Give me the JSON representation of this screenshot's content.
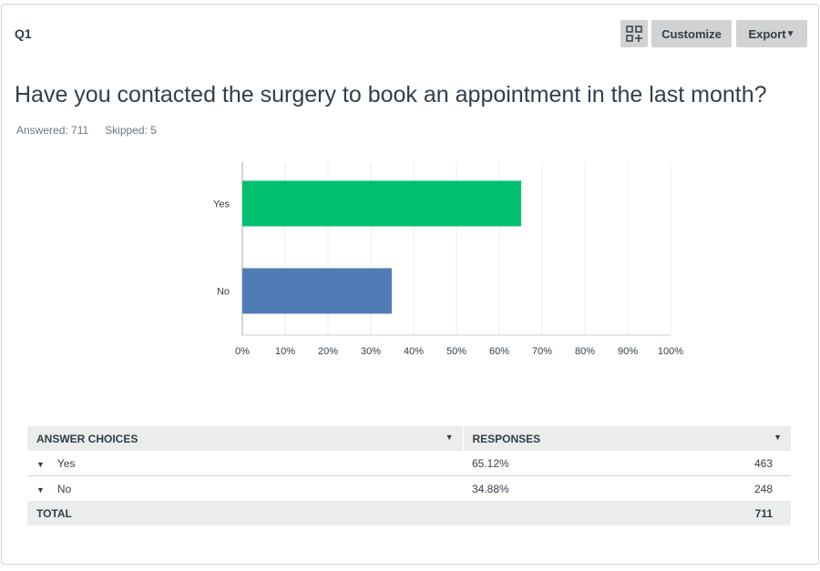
{
  "header": {
    "question_number": "Q1",
    "customize_label": "Customize",
    "export_label": "Export"
  },
  "question": {
    "title": "Have you contacted the surgery to book an appointment in the last month?",
    "answered": "Answered: 711",
    "skipped": "Skipped: 5"
  },
  "chart_data": {
    "type": "bar",
    "orientation": "horizontal",
    "categories": [
      "Yes",
      "No"
    ],
    "values": [
      65.12,
      34.88
    ],
    "colors": [
      "#00bf6f",
      "#507cb6"
    ],
    "xlim": [
      0,
      100
    ],
    "xticks": [
      "0%",
      "10%",
      "20%",
      "30%",
      "40%",
      "50%",
      "60%",
      "70%",
      "80%",
      "90%",
      "100%"
    ],
    "grid": true
  },
  "table": {
    "headers": [
      "ANSWER CHOICES",
      "RESPONSES"
    ],
    "rows": [
      {
        "choice": "Yes",
        "percent": "65.12%",
        "count": "463"
      },
      {
        "choice": "No",
        "percent": "34.88%",
        "count": "248"
      }
    ],
    "total_label": "TOTAL",
    "total": "711"
  }
}
